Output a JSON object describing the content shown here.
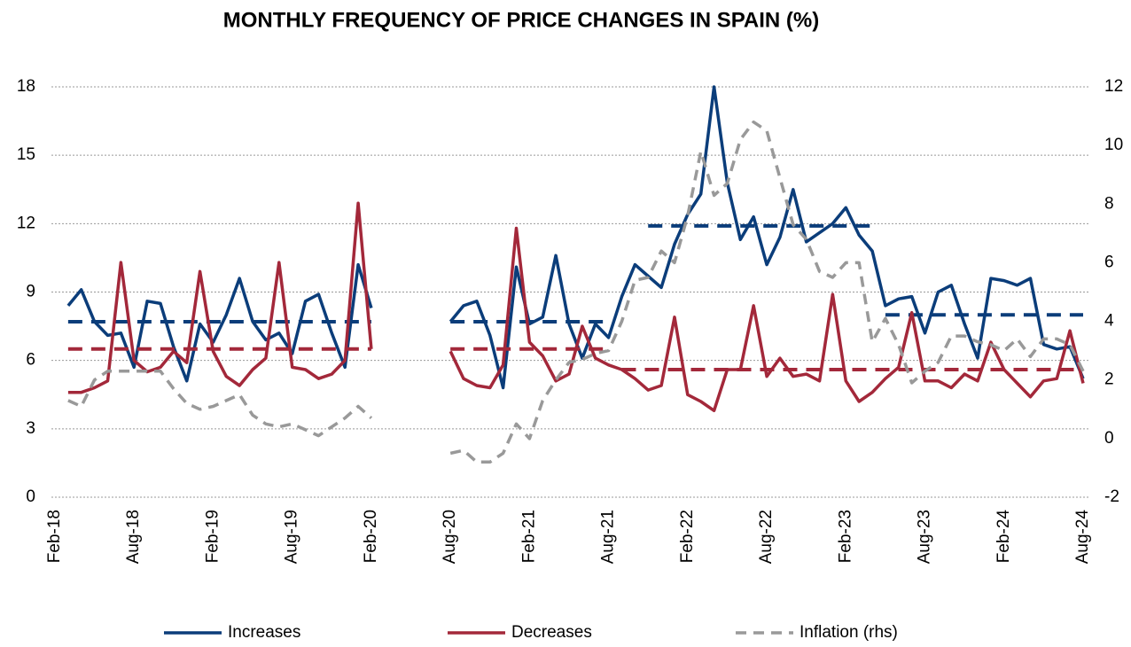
{
  "chart_data": {
    "type": "line",
    "title": "MONTHLY FREQUENCY OF PRICE CHANGES IN SPAIN (%)",
    "categories": [
      "Feb-18",
      null,
      null,
      null,
      null,
      null,
      "Aug-18",
      null,
      null,
      null,
      null,
      null,
      "Feb-19",
      null,
      null,
      null,
      null,
      null,
      "Aug-19",
      null,
      null,
      null,
      null,
      null,
      "Feb-20",
      null,
      null,
      null,
      null,
      null,
      "Aug-20",
      null,
      null,
      null,
      null,
      null,
      "Feb-21",
      null,
      null,
      null,
      null,
      null,
      "Aug-21",
      null,
      null,
      null,
      null,
      null,
      "Feb-22",
      null,
      null,
      null,
      null,
      null,
      "Aug-22",
      null,
      null,
      null,
      null,
      null,
      "Feb-23",
      null,
      null,
      null,
      null,
      null,
      "Aug-23",
      null,
      null,
      null,
      null,
      null,
      "Feb-24",
      null,
      null,
      null,
      null,
      null,
      "Aug-24"
    ],
    "ylim": [
      0,
      18
    ],
    "yticks": [
      0,
      3,
      6,
      9,
      12,
      15,
      18
    ],
    "y2lim": [
      -2,
      12
    ],
    "y2ticks": [
      -2,
      0,
      2,
      4,
      6,
      8,
      10,
      12
    ],
    "grid": true,
    "legend": "bottom",
    "series": [
      {
        "name": "Increases",
        "color": "#0b3d7a",
        "dashed": false,
        "values": [
          null,
          8.4,
          9.1,
          7.7,
          7.1,
          7.2,
          5.7,
          8.6,
          8.5,
          6.6,
          5.1,
          7.6,
          6.8,
          8.0,
          9.6,
          7.7,
          6.9,
          7.2,
          6.3,
          8.6,
          8.9,
          7.2,
          5.7,
          10.2,
          8.3,
          null,
          null,
          null,
          null,
          null,
          7.7,
          8.4,
          8.6,
          7.1,
          4.8,
          10.1,
          7.6,
          7.9,
          10.6,
          7.6,
          6.1,
          7.6,
          7.0,
          8.8,
          10.2,
          9.7,
          9.2,
          11.1,
          12.4,
          13.3,
          18.0,
          13.8,
          11.3,
          12.3,
          10.2,
          11.4,
          13.5,
          11.2,
          11.6,
          12.0,
          12.7,
          11.5,
          10.8,
          8.4,
          8.7,
          8.8,
          7.2,
          9.0,
          9.3,
          7.6,
          6.1,
          9.6,
          9.5,
          9.3,
          9.6,
          6.7,
          6.5,
          6.6,
          5.2
        ],
        "period_averages": [
          {
            "value": 7.7,
            "from": 1,
            "to": 24
          },
          {
            "value": 7.7,
            "from": 30,
            "to": 42
          },
          {
            "value": 11.9,
            "from": 45,
            "to": 62
          },
          {
            "value": 8.0,
            "from": 63,
            "to": 78
          }
        ]
      },
      {
        "name": "Decreases",
        "color": "#a3283a",
        "dashed": false,
        "values": [
          null,
          4.6,
          4.6,
          4.8,
          5.1,
          10.3,
          6.0,
          5.5,
          5.7,
          6.4,
          5.9,
          9.9,
          6.4,
          5.3,
          4.9,
          5.6,
          6.1,
          10.3,
          5.7,
          5.6,
          5.2,
          5.4,
          6.0,
          12.9,
          6.5,
          null,
          null,
          null,
          null,
          null,
          6.4,
          5.2,
          4.9,
          4.8,
          5.8,
          11.8,
          6.8,
          6.2,
          5.1,
          5.4,
          7.5,
          6.1,
          5.8,
          5.6,
          5.2,
          4.7,
          4.9,
          7.9,
          4.5,
          4.2,
          3.8,
          5.6,
          5.6,
          8.4,
          5.3,
          6.1,
          5.3,
          5.4,
          5.1,
          8.9,
          5.1,
          4.2,
          4.6,
          5.2,
          5.7,
          8.1,
          5.1,
          5.1,
          4.8,
          5.4,
          5.1,
          6.8,
          5.6,
          5.0,
          4.4,
          5.1,
          5.2,
          7.3,
          5.0
        ],
        "period_averages": [
          {
            "value": 6.5,
            "from": 1,
            "to": 24
          },
          {
            "value": 6.5,
            "from": 30,
            "to": 42
          },
          {
            "value": 5.6,
            "from": 43,
            "to": 78
          }
        ]
      },
      {
        "name": "Inflation (rhs)",
        "color": "#999999",
        "dashed": true,
        "axis": "y2",
        "values": [
          null,
          1.3,
          1.1,
          2.0,
          2.3,
          2.3,
          2.3,
          2.3,
          2.3,
          1.7,
          1.2,
          1.0,
          1.1,
          1.3,
          1.5,
          0.8,
          0.5,
          0.4,
          0.5,
          0.3,
          0.1,
          0.4,
          0.7,
          1.1,
          0.7,
          null,
          null,
          null,
          null,
          null,
          -0.5,
          -0.4,
          -0.8,
          -0.8,
          -0.5,
          0.5,
          0.0,
          1.3,
          2.0,
          2.6,
          2.7,
          2.9,
          3.0,
          4.0,
          5.4,
          5.5,
          6.4,
          6.0,
          7.6,
          9.8,
          8.3,
          8.7,
          10.2,
          10.8,
          10.5,
          8.9,
          7.3,
          6.8,
          5.7,
          5.5,
          6.0,
          6.0,
          3.3,
          4.1,
          3.2,
          1.9,
          2.3,
          2.6,
          3.5,
          3.5,
          3.3,
          3.2,
          3.0,
          3.4,
          2.8,
          3.4,
          3.4,
          3.2,
          2.3
        ]
      }
    ]
  }
}
